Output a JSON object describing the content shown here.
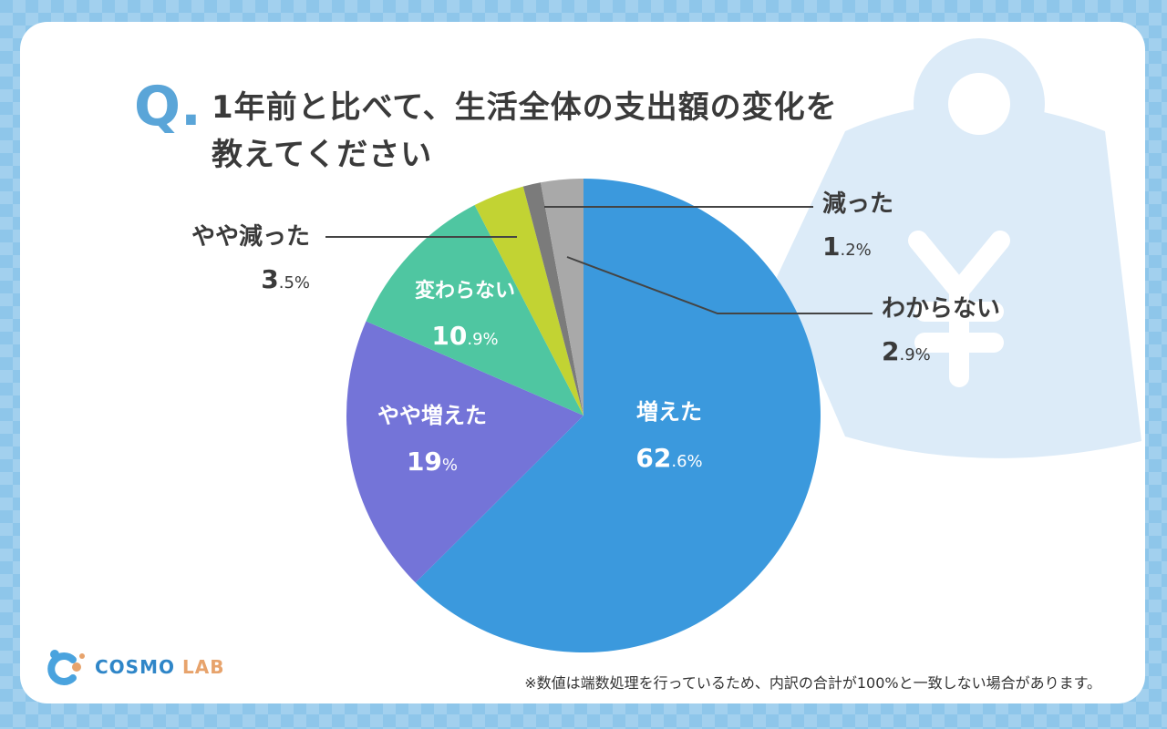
{
  "question": {
    "mark": "Q.",
    "line1": "1年前と比べて、生活全体の支出額の変化を",
    "line2": "教えてください"
  },
  "chart_data": {
    "type": "pie",
    "title": "1年前と比べて、生活全体の支出額の変化を教えてください",
    "slices": [
      {
        "label": "増えた",
        "value": 62.6,
        "int": "62",
        "dec": ".6%",
        "color": "#3b99dd",
        "inside": true
      },
      {
        "label": "やや増えた",
        "value": 19,
        "int": "19",
        "dec": "%",
        "color": "#7474d8",
        "inside": true
      },
      {
        "label": "変わらない",
        "value": 10.9,
        "int": "10",
        "dec": ".9%",
        "color": "#4fc6a1",
        "inside": true
      },
      {
        "label": "やや減った",
        "value": 3.5,
        "int": "3",
        "dec": ".5%",
        "color": "#c2d333",
        "inside": false
      },
      {
        "label": "減った",
        "value": 1.2,
        "int": "1",
        "dec": ".2%",
        "color": "#7b7b7b",
        "inside": false
      },
      {
        "label": "わからない",
        "value": 2.9,
        "int": "2",
        "dec": ".9%",
        "color": "#a9a9a9",
        "inside": false
      }
    ]
  },
  "brand": {
    "name": "COSMO",
    "suffix": "LAB"
  },
  "footnote": "※数値は端数処理を行っているため、内訳の合計が100%と一致しない場合があります。",
  "colors": {
    "accent": "#5aa5d8",
    "background": "#8ec6ea"
  }
}
